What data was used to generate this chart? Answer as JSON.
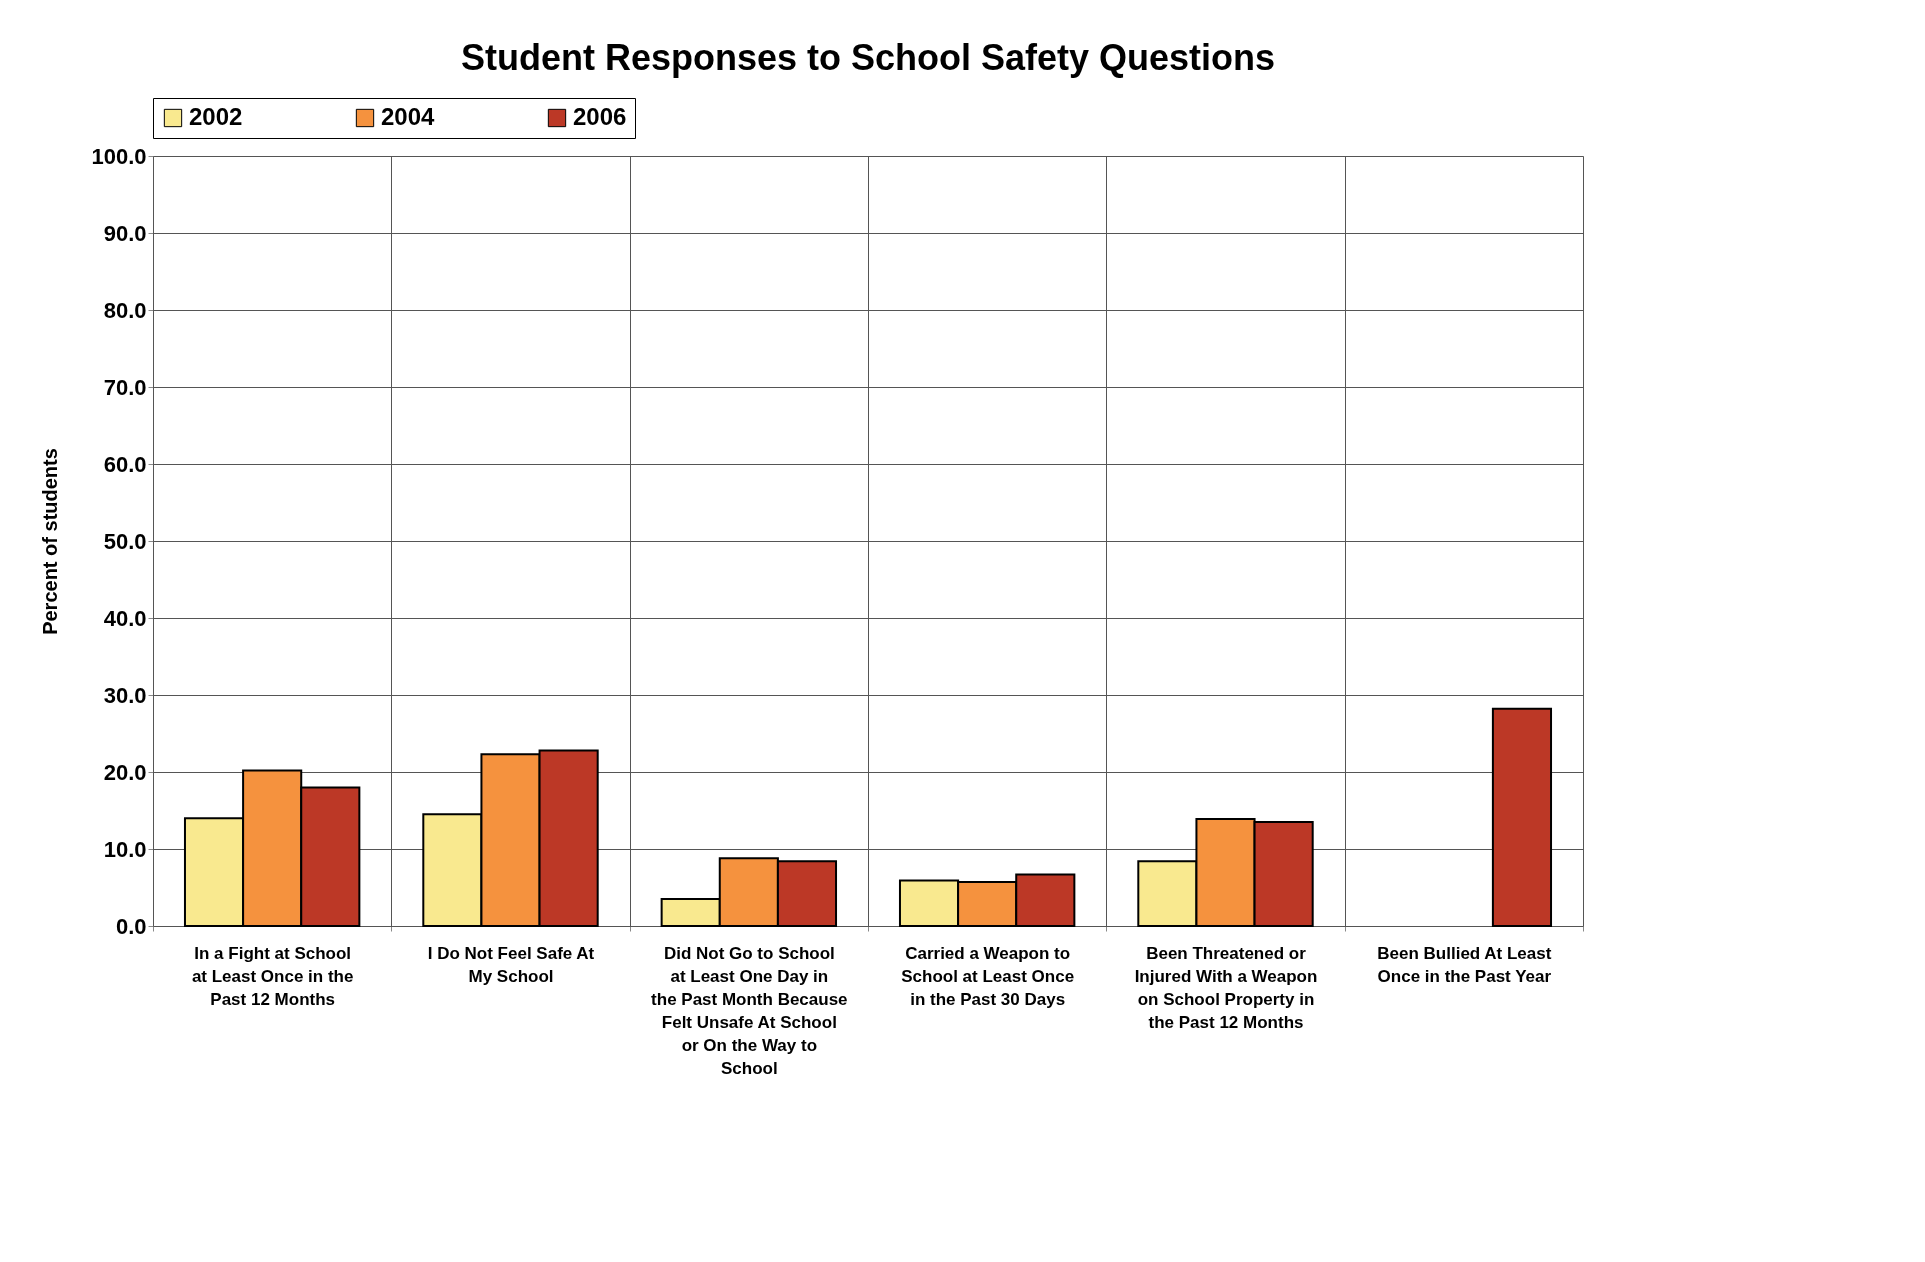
{
  "chart_data": {
    "type": "bar",
    "title": "Student Responses to School Safety Questions",
    "ylabel": "Percent of students",
    "categories": [
      "In a Fight at School at Least Once in the Past 12 Months",
      "I Do Not Feel Safe At My School",
      "Did Not Go to School at Least One Day in the Past Month Because Felt Unsafe At School or On the Way to School",
      "Carried a Weapon to School at Least Once in the Past 30 Days",
      "Been Threatened or Injured With a Weapon on School Property in the Past 12 Months",
      "Been Bullied At Least Once in the Past Year"
    ],
    "series": [
      {
        "name": "2002",
        "color": "#f9e98f",
        "values": [
          14.0,
          14.5,
          3.5,
          5.9,
          8.4,
          null
        ]
      },
      {
        "name": "2004",
        "color": "#f5923e",
        "values": [
          20.2,
          22.3,
          8.8,
          5.7,
          13.9,
          null
        ]
      },
      {
        "name": "2006",
        "color": "#bc3826",
        "values": [
          18.0,
          22.8,
          8.4,
          6.7,
          13.5,
          28.2
        ]
      }
    ],
    "ylim": [
      0,
      100
    ],
    "yticks": [
      {
        "value": 0,
        "label": "0.0"
      },
      {
        "value": 10,
        "label": "10.0"
      },
      {
        "value": 20,
        "label": "20.0"
      },
      {
        "value": 30,
        "label": "30.0"
      },
      {
        "value": 40,
        "label": "40.0"
      },
      {
        "value": 50,
        "label": "50.0"
      },
      {
        "value": 60,
        "label": "60.0"
      },
      {
        "value": 70,
        "label": "70.0"
      },
      {
        "value": 80,
        "label": "80.0"
      },
      {
        "value": 90,
        "label": "90.0"
      },
      {
        "value": 100,
        "label": "100.0"
      }
    ],
    "grid": true,
    "legend": "top"
  }
}
